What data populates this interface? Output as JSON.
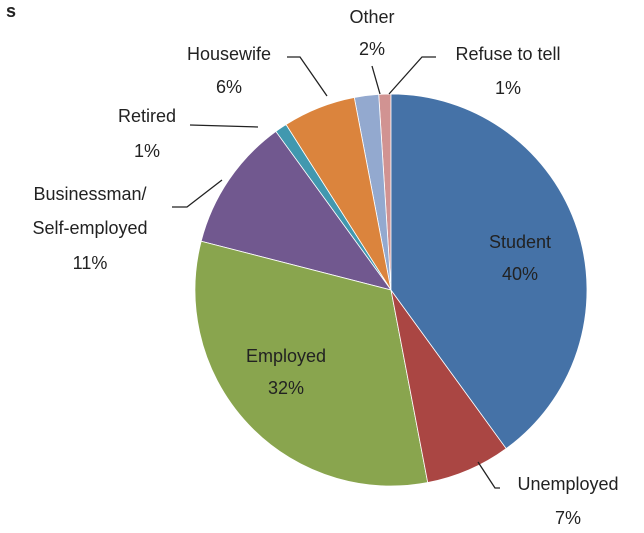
{
  "chart_data": {
    "type": "pie",
    "title": "s",
    "categories": [
      "Student",
      "Unemployed",
      "Employed",
      "Businessman/Self-employed",
      "Retired",
      "Housewife",
      "Other",
      "Refuse to tell"
    ],
    "values": [
      40,
      7,
      32,
      11,
      1,
      6,
      2,
      1
    ],
    "value_labels": [
      "40%",
      "7%",
      "32%",
      "11%",
      "1%",
      "6%",
      "2%",
      "1%"
    ],
    "colors": [
      "#4572a7",
      "#aa4643",
      "#89a54e",
      "#71588f",
      "#4198af",
      "#db843d",
      "#93a9cf",
      "#d19392"
    ]
  }
}
